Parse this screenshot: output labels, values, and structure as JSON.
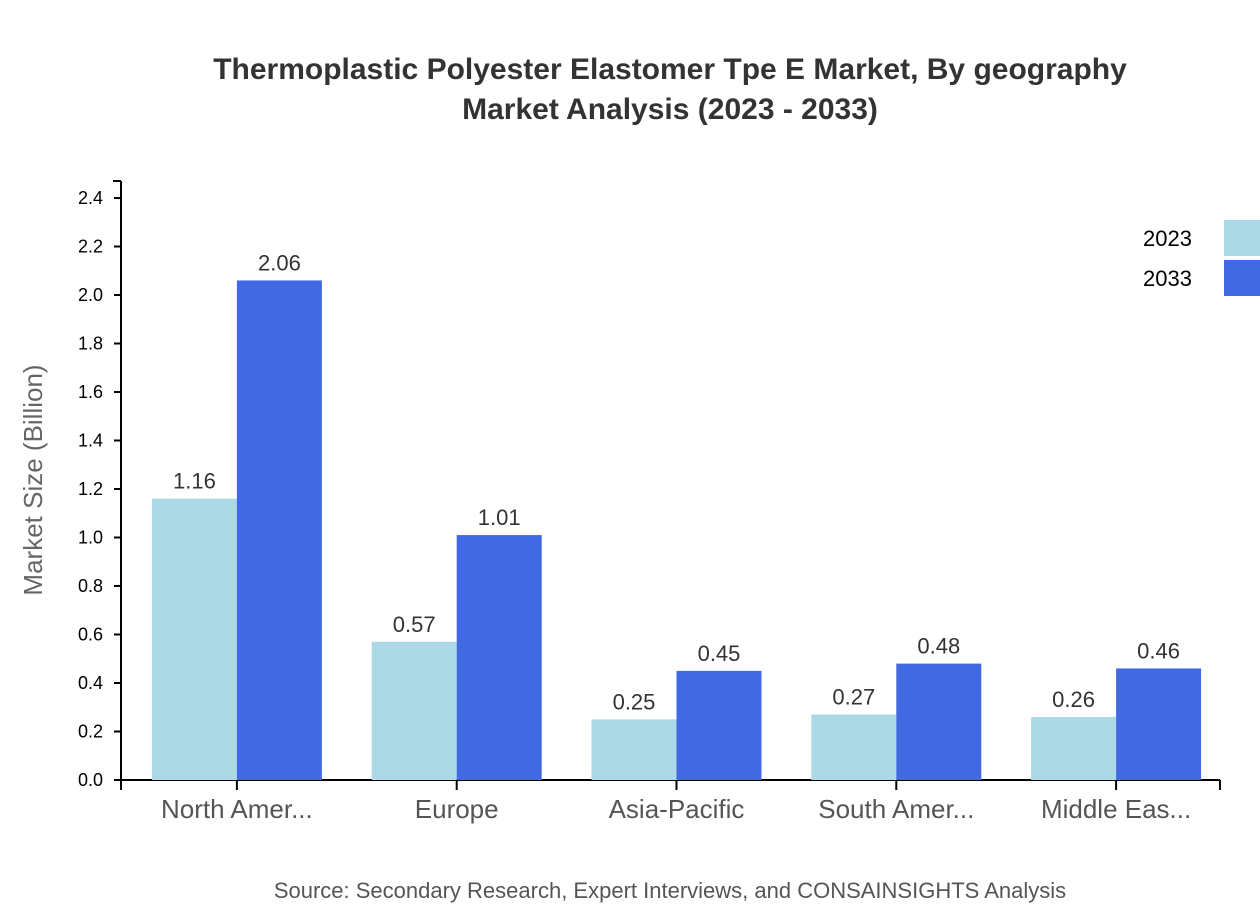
{
  "chart": {
    "title_line1": "Thermoplastic Polyester Elastomer Tpe E Market, By geography",
    "title_line2": "Market Analysis (2023 - 2033)",
    "source": "Source: Secondary Research, Expert Interviews, and CONSAINSIGHTS Analysis",
    "colors": {
      "2023": "#add8e6",
      "2033": "#4169e1"
    }
  },
  "chart_data": {
    "type": "bar",
    "title": "Thermoplastic Polyester Elastomer Tpe E Market, By geography Market Analysis (2023 - 2033)",
    "xlabel": "",
    "ylabel": "Market Size (Billion)",
    "ylim": [
      0,
      2.4
    ],
    "yticks": [
      "0.0",
      "0.2",
      "0.4",
      "0.6",
      "0.8",
      "1.0",
      "1.2",
      "1.4",
      "1.6",
      "1.8",
      "2.0",
      "2.2",
      "2.4"
    ],
    "grid": false,
    "legend_position": "top-right",
    "categories": [
      "North Amer...",
      "Europe",
      "Asia-Pacific",
      "South Amer...",
      "Middle Eas..."
    ],
    "series": [
      {
        "name": "2023",
        "color": "#add8e6",
        "values": [
          1.16,
          0.57,
          0.25,
          0.27,
          0.26
        ]
      },
      {
        "name": "2033",
        "color": "#4169e1",
        "values": [
          2.06,
          1.01,
          0.45,
          0.48,
          0.46
        ]
      }
    ]
  }
}
